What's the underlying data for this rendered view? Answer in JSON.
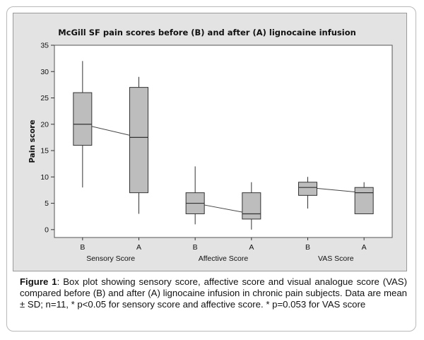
{
  "chart_data": {
    "type": "boxplot",
    "title": "McGill SF pain scores before (B) and after (A) lignocaine infusion",
    "xlabel": "",
    "ylabel": "Pain score",
    "ylim": [
      -1.5,
      35
    ],
    "yticks": [
      0,
      5,
      10,
      15,
      20,
      25,
      30,
      35
    ],
    "groups": [
      {
        "name": "Sensory Score",
        "categories": [
          "B",
          "A"
        ]
      },
      {
        "name": "Affective Score",
        "categories": [
          "B",
          "A"
        ]
      },
      {
        "name": "VAS Score",
        "categories": [
          "B",
          "A"
        ]
      }
    ],
    "boxes": [
      {
        "group": "Sensory Score",
        "category": "B",
        "min": 8,
        "q1": 16,
        "median": 20,
        "q3": 26,
        "max": 32
      },
      {
        "group": "Sensory Score",
        "category": "A",
        "min": 3,
        "q1": 7,
        "median": 17.5,
        "q3": 27,
        "max": 29
      },
      {
        "group": "Affective Score",
        "category": "B",
        "min": 1,
        "q1": 3,
        "median": 5,
        "q3": 7,
        "max": 12
      },
      {
        "group": "Affective Score",
        "category": "A",
        "min": 0,
        "q1": 2,
        "median": 3,
        "q3": 7,
        "max": 9
      },
      {
        "group": "VAS Score",
        "category": "B",
        "min": 4,
        "q1": 6.5,
        "median": 8,
        "q3": 9,
        "max": 10
      },
      {
        "group": "VAS Score",
        "category": "A",
        "min": 3,
        "q1": 3,
        "median": 7,
        "q3": 8,
        "max": 9
      }
    ],
    "median_connectors": true,
    "colors": {
      "box_fill": "#bdbdbd",
      "panel_bg": "#e3e3e3",
      "plot_bg": "#ffffff",
      "line": "#333333"
    }
  },
  "caption": {
    "label": "Figure 1",
    "text": ":  Box plot showing sensory score, affective score and visual analogue score (VAS) compared before (B) and after (A) lignocaine infusion in chronic pain subjects. Data are mean ±  SD; n=11, * p<0.05 for sensory score and affective score. * p=0.053 for VAS score"
  }
}
